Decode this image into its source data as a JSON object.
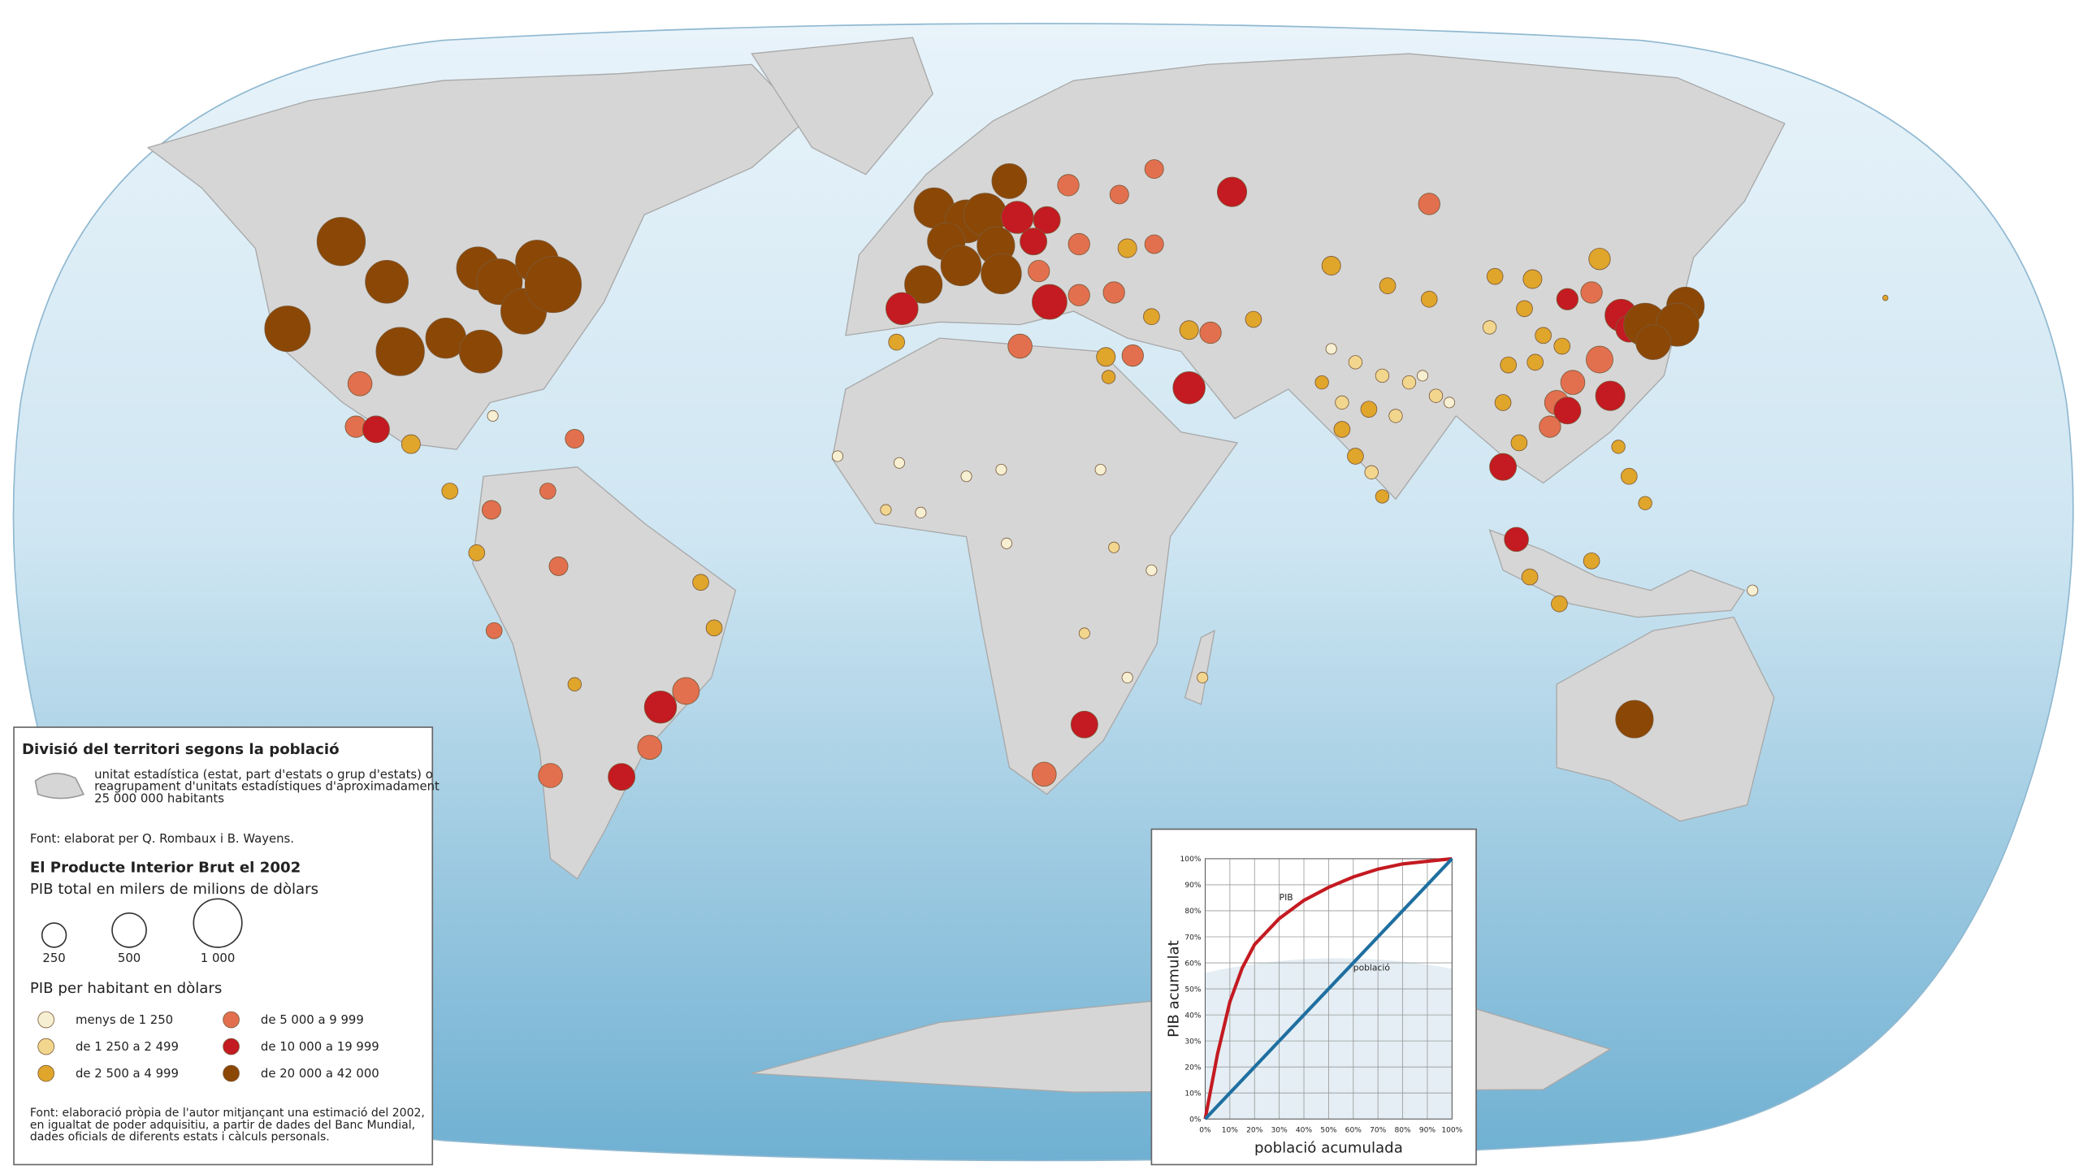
{
  "legend": {
    "population_title": "Divisió del territori segons la població",
    "unit_lines": [
      "unitat estadística (estat, part d'estats o grup d'estats) o",
      "reagrupament d'unitats estadístiques d'aproximadament",
      "25 000 000 habitants"
    ],
    "source_1": "Font: elaborat per Q. Rombaux i B. Wayens.",
    "gdp_title": "El Producte Interior Brut el 2002",
    "gdp_subtitle": "PIB total en milers de milions de dòlars",
    "sizes": [
      250,
      500,
      {
        "value": 1000,
        "label": "1 000"
      }
    ],
    "per_capita_title": "PIB per habitant en dòlars",
    "classes": [
      {
        "label": "menys de 1 250",
        "color": "#f7efd2"
      },
      {
        "label": "de 1 250 a 2 499",
        "color": "#f2d68e"
      },
      {
        "label": "de 2 500 a 4 999",
        "color": "#e0a52b"
      },
      {
        "label": "de 5 000 a 9 999",
        "color": "#e2704f"
      },
      {
        "label": "de 10 000 a 19 999",
        "color": "#c41a21"
      },
      {
        "label": "de 20 000 a 42 000",
        "color": "#8b4705"
      }
    ],
    "source_2_lines": [
      "Font: elaboració pròpia de l'autor mitjançant una estimació del 2002,",
      "en igualtat de poder adquisitiu, a partir de dades del Banc Mundial,",
      "dades oficials de diferents estats i càlculs personals."
    ]
  },
  "chart_data": {
    "type": "line",
    "x": [
      0,
      5,
      10,
      15,
      20,
      30,
      40,
      50,
      60,
      70,
      80,
      90,
      100
    ],
    "series": [
      {
        "name": "PIB",
        "color": "#c41a21",
        "values": [
          0,
          25,
          45,
          58,
          67,
          77,
          84,
          89,
          93,
          96,
          98,
          99,
          100
        ]
      },
      {
        "name": "població",
        "color": "#1f6fa0",
        "values": [
          0,
          5,
          10,
          15,
          20,
          30,
          40,
          50,
          60,
          70,
          80,
          90,
          100
        ]
      }
    ],
    "xlabel": "població acumulada",
    "ylabel": "PIB acumulat",
    "xlim": [
      0,
      100
    ],
    "ylim": [
      0,
      100
    ],
    "xticks": [
      {
        "value": 0,
        "label": "0%"
      },
      {
        "value": 10,
        "label": "10%"
      },
      {
        "value": 20,
        "label": "20%"
      },
      {
        "value": 30,
        "label": "30%"
      },
      {
        "value": 40,
        "label": "40%"
      },
      {
        "value": 50,
        "label": "50%"
      },
      {
        "value": 60,
        "label": "60%"
      },
      {
        "value": 70,
        "label": "70%"
      },
      {
        "value": 80,
        "label": "80%"
      },
      {
        "value": 90,
        "label": "90%"
      },
      {
        "value": 100,
        "label": "100%"
      }
    ],
    "yticks": [
      {
        "value": 0,
        "label": "0%"
      },
      {
        "value": 10,
        "label": "10%"
      },
      {
        "value": 20,
        "label": "20%"
      },
      {
        "value": 30,
        "label": "30%"
      },
      {
        "value": 40,
        "label": "40%"
      },
      {
        "value": 50,
        "label": "50%"
      },
      {
        "value": 60,
        "label": "60%"
      },
      {
        "value": 70,
        "label": "70%"
      },
      {
        "value": 80,
        "label": "80%"
      },
      {
        "value": 90,
        "label": "90%"
      },
      {
        "value": 100,
        "label": "100%"
      }
    ],
    "grid": true
  }
}
